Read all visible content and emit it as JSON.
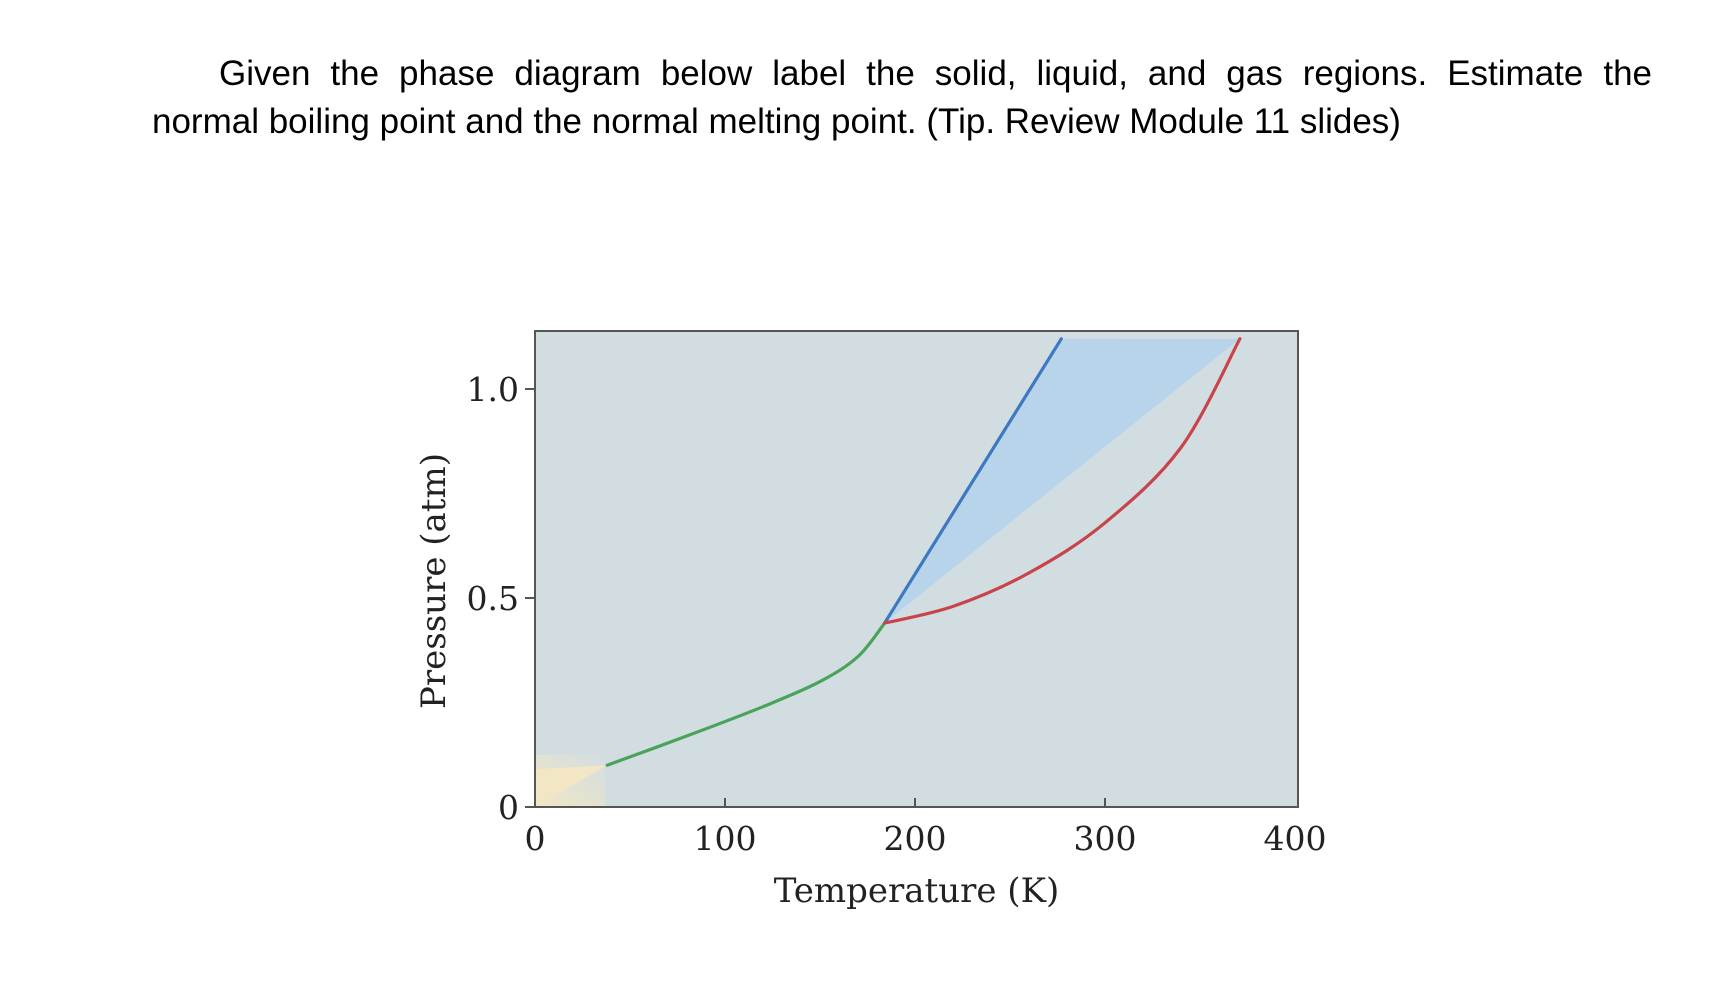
{
  "question": {
    "line1": "Given the phase diagram below label the solid, liquid, and gas regions. Estimate the",
    "line2": "normal boiling point and the normal melting point. (Tip. Review Module 11 slides)"
  },
  "colors": {
    "upper_region": "#d2dde2",
    "liquid_region": "#b8d4eb",
    "lower_region": "#f2e6c4",
    "sublimation_curve": "#4aa35a",
    "melting_curve": "#3d78c0",
    "boiling_curve": "#c8444a",
    "axis": "#555555"
  },
  "chart_data": {
    "type": "line",
    "title": "",
    "xlabel": "Temperature (K)",
    "ylabel": "Pressure (atm)",
    "xlim": [
      0,
      400
    ],
    "ylim": [
      0,
      1.12
    ],
    "xticks": [
      0,
      100,
      200,
      300,
      400
    ],
    "xtick_labels": [
      "0",
      "100",
      "200",
      "300",
      "400"
    ],
    "yticks": [
      0,
      0.5,
      1.0
    ],
    "ytick_labels": [
      "0",
      "0.5",
      "1.0"
    ],
    "grid": false,
    "legend": "none",
    "triple_point": {
      "x": 184,
      "y": 0.44
    },
    "series": [
      {
        "key": "sublimation",
        "color": "#4aa35a",
        "x": [
          38,
          80,
          120,
          150,
          170,
          184
        ],
        "y": [
          0.1,
          0.17,
          0.24,
          0.3,
          0.36,
          0.44
        ]
      },
      {
        "key": "melting",
        "color": "#3d78c0",
        "x": [
          184,
          277
        ],
        "y": [
          0.44,
          1.12
        ]
      },
      {
        "key": "boiling",
        "color": "#c8444a",
        "x": [
          184,
          220,
          260,
          300,
          340,
          371
        ],
        "y": [
          0.44,
          0.48,
          0.56,
          0.68,
          0.86,
          1.12
        ]
      }
    ]
  }
}
